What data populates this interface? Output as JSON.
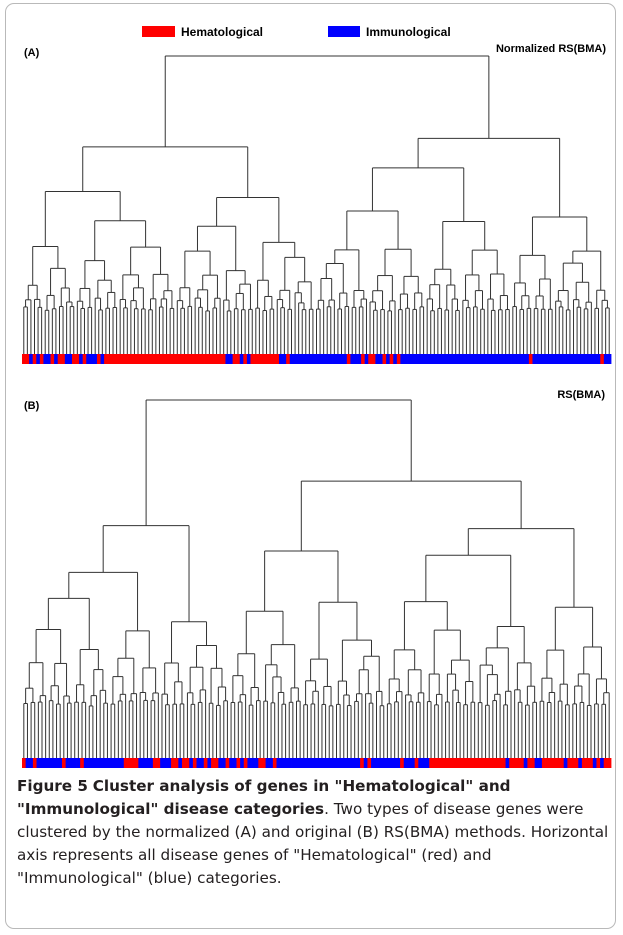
{
  "legend": {
    "items": [
      {
        "label": "Hematological",
        "color": "#ff0000"
      },
      {
        "label": "Immunological",
        "color": "#0000ff"
      }
    ]
  },
  "panels": [
    {
      "tag": "(A)",
      "title": "Normalized RS(BMA)"
    },
    {
      "tag": "(B)",
      "title": "RS(BMA)"
    }
  ],
  "caption": {
    "figure_label": "Figure 5",
    "title": "Cluster analysis of genes in \"Hematological\" and \"Immunological\" disease categories",
    "text": ". Two types of disease genes were clustered by the normalized (A) and original (B) RS(BMA) methods. Horizontal axis represents all disease genes of \"Hematological\" (red) and \"Immunological\" (blue) categories."
  },
  "colors": {
    "hematological": "#ff0000",
    "immunological": "#0000ff",
    "tree": "#333333"
  },
  "chart_data": [
    {
      "type": "dendrogram",
      "title": "Normalized RS(BMA)",
      "leaf_categories": "RRBRBRBBRBRRBBRRBRBBBRBRRRRRRRRRRRRRRRRRRRRRRRRRRRRRRRRRRBBRRBRBRRRRRRRRBBRBBBBBBBBBBBBBBBBRBBBRBRRBBRBRBRBBBBBBBBBBBBBBBBBBBBBBBBBBBBBBBBBBBBRBBBBBBBBBBBBBBBBBBBRBB"
    },
    {
      "type": "dendrogram",
      "title": "RS(BMA)",
      "leaf_categories": "RBBRBBBBBBBRBBBBRBBBBBBBBBBBRRRRBBBBRRBBBRRBRRBRBBRBRRBBRBBRBRBBBRRBBRBBBBBBBBBBBBBBBBBBBBBBBRBRBBBBBBBBRBBBRBBBRRRRRRRRRRRRRRRRRRRRRBRRRRBRRBBRRRRRRBRRRBRRRBRBRR"
    }
  ]
}
